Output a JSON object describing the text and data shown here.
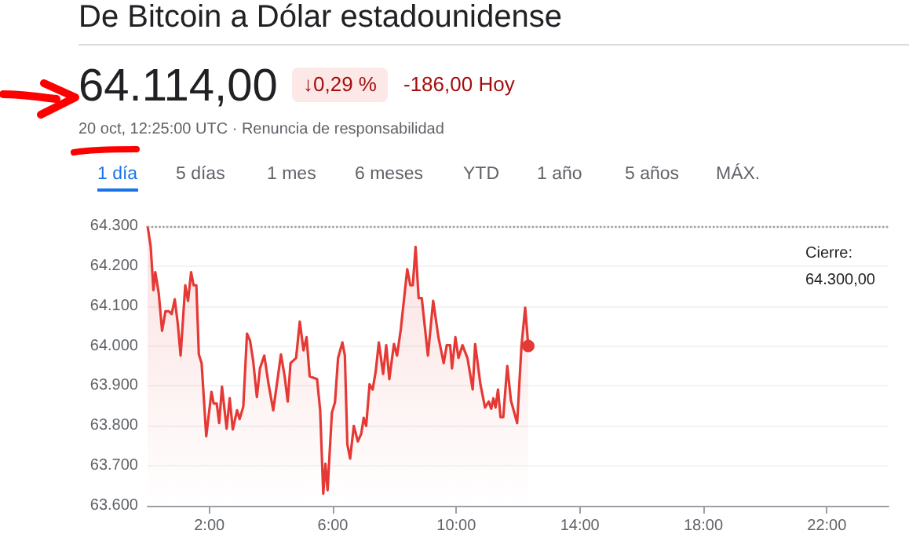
{
  "chart_data": {
    "type": "area",
    "title": "De Bitcoin a Dólar estadounidense",
    "annotations": [
      "64.114,00",
      "↓0,29 %",
      "-186,00 Hoy",
      "20 oct, 12:25:00 UTC · Renuncia de responsabilidad",
      "1 día",
      "5 días",
      "1 mes",
      "6 meses",
      "YTD",
      "1 año",
      "5 años",
      "MÁX."
    ],
    "series": [
      {
        "color": "#e53935",
        "x": [
          0,
          0.1,
          0.19,
          0.25,
          0.36,
          0.47,
          0.58,
          0.69,
          0.78,
          0.88,
          0.98,
          1.07,
          1.22,
          1.31,
          1.41,
          1.49,
          1.58,
          1.66,
          1.75,
          1.9,
          2.07,
          2.14,
          2.24,
          2.32,
          2.41,
          2.56,
          2.66,
          2.76,
          2.9,
          2.98,
          3.1,
          3.22,
          3.32,
          3.42,
          3.54,
          3.64,
          3.78,
          3.92,
          4.07,
          4.2,
          4.32,
          4.44,
          4.54,
          4.63,
          4.81,
          4.93,
          5.05,
          5.15,
          5.25,
          5.49,
          5.59,
          5.69,
          5.76,
          5.83,
          5.97,
          6.07,
          6.17,
          6.31,
          6.39,
          6.47,
          6.56,
          6.68,
          6.81,
          6.92,
          7.0,
          7.08,
          7.19,
          7.29,
          7.39,
          7.49,
          7.63,
          7.73,
          7.83,
          7.98,
          8.08,
          8.2,
          8.31,
          8.41,
          8.51,
          8.59,
          8.68,
          8.78,
          8.88,
          9.08,
          9.25,
          9.42,
          9.59,
          9.69,
          9.8,
          9.86,
          9.97,
          10.07,
          10.2,
          10.36,
          10.53,
          10.61,
          10.78,
          10.93,
          11.05,
          11.13,
          11.2,
          11.27,
          11.35,
          11.43,
          11.52,
          11.65,
          11.77,
          11.97,
          12.11,
          12.23,
          12.33
        ],
        "values": [
          64300,
          64250,
          64140,
          64185,
          64133,
          64038,
          64087,
          64087,
          64080,
          64117,
          64055,
          63976,
          64152,
          64113,
          64185,
          64152,
          64152,
          63979,
          63957,
          63774,
          63885,
          63856,
          63856,
          63807,
          63898,
          63793,
          63869,
          63791,
          63839,
          63817,
          63848,
          64031,
          64013,
          63963,
          63872,
          63944,
          63976,
          63904,
          63839,
          63911,
          63979,
          63924,
          63861,
          63957,
          63970,
          64061,
          63989,
          64022,
          63924,
          63917,
          63839,
          63630,
          63705,
          63639,
          63833,
          63859,
          63970,
          64009,
          63976,
          63754,
          63718,
          63800,
          63761,
          63780,
          63820,
          63800,
          63904,
          63891,
          63937,
          64009,
          63930,
          64002,
          63917,
          64005,
          63976,
          64041,
          64120,
          64192,
          64152,
          64152,
          64248,
          64120,
          64120,
          63976,
          64113,
          64022,
          63957,
          64002,
          64002,
          63944,
          64022,
          63970,
          64002,
          63970,
          63891,
          64005,
          63904,
          63846,
          63861,
          63843,
          63869,
          63846,
          63891,
          63822,
          63822,
          63950,
          63863,
          63807,
          64000,
          64096,
          64000
        ]
      }
    ],
    "xlim": [
      0,
      24
    ],
    "xticks": [
      {
        "value": 2,
        "label": "2:00"
      },
      {
        "value": 6,
        "label": "6:00"
      },
      {
        "value": 10,
        "label": "10:00"
      },
      {
        "value": 14,
        "label": "14:00"
      },
      {
        "value": 18,
        "label": "18:00"
      },
      {
        "value": 22,
        "label": "22:00"
      }
    ],
    "ylim": [
      63600,
      64300
    ],
    "yticks": [
      {
        "value": 63600,
        "label": "63.600"
      },
      {
        "value": 63700,
        "label": "63.700"
      },
      {
        "value": 63800,
        "label": "63.800"
      },
      {
        "value": 63900,
        "label": "63.900"
      },
      {
        "value": 64000,
        "label": "64.000"
      },
      {
        "value": 64100,
        "label": "64.100"
      },
      {
        "value": 64200,
        "label": "64.200"
      },
      {
        "value": 64300,
        "label": "64.300"
      }
    ],
    "grid": "y",
    "ref_lines": [
      {
        "axis": "y",
        "value": 64300,
        "label": "Cierre:\n64.300,00",
        "color": "#9e9e9e",
        "line_style": "dotted"
      }
    ]
  }
}
